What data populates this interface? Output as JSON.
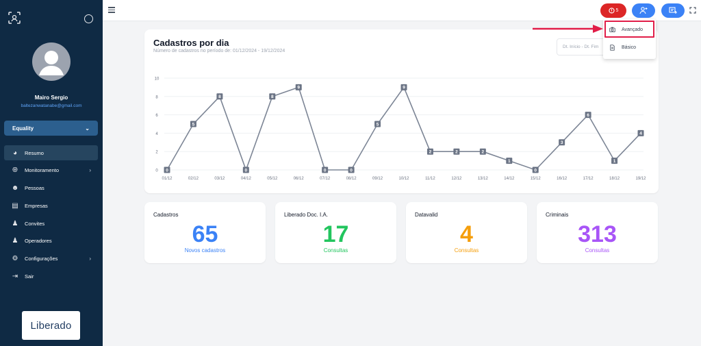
{
  "sidebar": {
    "user_name": "Mairo Sergio",
    "user_email": "baltezanwatanabe@gmail.com",
    "tenant": "Equality",
    "items": [
      {
        "label": "Resumo",
        "icon": "pie-chart-icon",
        "active": true,
        "has_submenu": false
      },
      {
        "label": "Monitoramento",
        "icon": "globe-icon",
        "active": false,
        "has_submenu": true
      },
      {
        "label": "Pessoas",
        "icon": "people-icon",
        "active": false,
        "has_submenu": false
      },
      {
        "label": "Empresas",
        "icon": "store-icon",
        "active": false,
        "has_submenu": false
      },
      {
        "label": "Convites",
        "icon": "user-plus-icon",
        "active": false,
        "has_submenu": false
      },
      {
        "label": "Operadores",
        "icon": "users-icon",
        "active": false,
        "has_submenu": false
      },
      {
        "label": "Configurações",
        "icon": "gear-icon",
        "active": false,
        "has_submenu": true
      },
      {
        "label": "Sair",
        "icon": "logout-icon",
        "active": false,
        "has_submenu": false
      }
    ],
    "brand": "Liberado"
  },
  "topbar": {
    "alert_count": "5"
  },
  "dropdown": {
    "items": [
      {
        "label": "Avançado",
        "icon": "camera-icon"
      },
      {
        "label": "Básico",
        "icon": "document-icon"
      }
    ]
  },
  "chart_card": {
    "title": "Cadastros por dia",
    "subtitle": "Número de cadastros no período de: 01/12/2024 - 19/12/2024",
    "date_placeholder": "Dt. Início - Dt. Fim"
  },
  "chart_data": {
    "type": "line",
    "title": "Cadastros por dia",
    "categories": [
      "01/12",
      "02/12",
      "03/12",
      "04/12",
      "05/12",
      "06/12",
      "07/12",
      "08/12",
      "09/12",
      "10/12",
      "11/12",
      "12/12",
      "13/12",
      "14/12",
      "15/12",
      "16/12",
      "17/12",
      "18/12",
      "19/12"
    ],
    "values": [
      0,
      5,
      8,
      0,
      8,
      9,
      0,
      0,
      5,
      9,
      2,
      2,
      2,
      1,
      0,
      3,
      6,
      1,
      4
    ],
    "y_ticks": [
      0,
      2,
      4,
      6,
      8,
      10
    ],
    "ylim": [
      0,
      10
    ],
    "grid": true,
    "line_color": "#7c8595"
  },
  "stats": [
    {
      "label": "Cadastros",
      "value": "65",
      "caption": "Novos cadastros",
      "color": "#3b82f6"
    },
    {
      "label": "Liberado Doc. I.A.",
      "value": "17",
      "caption": "Consultas",
      "color": "#22c55e"
    },
    {
      "label": "Datavalid",
      "value": "4",
      "caption": "Consultas",
      "color": "#f59e0b"
    },
    {
      "label": "Criminais",
      "value": "313",
      "caption": "Consultas",
      "color": "#a855f7"
    }
  ]
}
